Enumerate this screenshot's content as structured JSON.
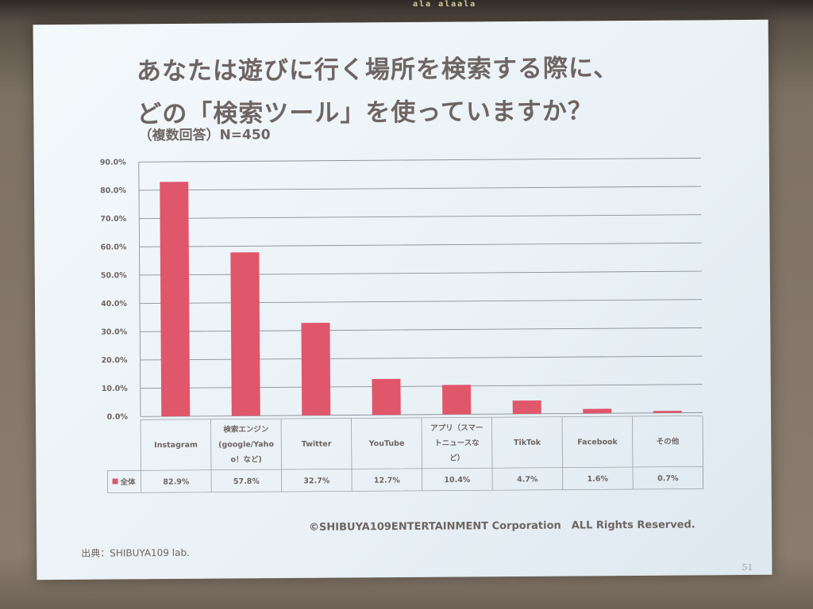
{
  "sign_text": "ala alaala",
  "slide": {
    "title_line1": "あなたは遊びに行く場所を検索する際に、",
    "title_line2": "どの「検索ツール」を使っていますか？",
    "subtitle": "（複数回答）N=450",
    "copyright": "©SHIBUYA109ENTERTAINMENT Corporation　ALL Rights Reserved.",
    "source": "出典：SHIBUYA109 lab.",
    "page_number": "51"
  },
  "chart_data": {
    "type": "bar",
    "categories": [
      "Instagram",
      "検索エンジン (google/Yahoo!など)",
      "Twitter",
      "YouTube",
      "アプリ（スマートニュースなど）",
      "TikTok",
      "Facebook",
      "その他"
    ],
    "category_lines": [
      [
        "Instagram"
      ],
      [
        "検索エンジン",
        "(google/Yaho",
        "o！など)"
      ],
      [
        "Twitter"
      ],
      [
        "YouTube"
      ],
      [
        "アプリ（スマー",
        "トニュースな",
        "ど）"
      ],
      [
        "TikTok"
      ],
      [
        "Facebook"
      ],
      [
        "その他"
      ]
    ],
    "series": [
      {
        "name": "全体",
        "values": [
          82.9,
          57.8,
          32.7,
          12.7,
          10.4,
          4.7,
          1.6,
          0.7
        ],
        "labels": [
          "82.9%",
          "57.8%",
          "32.7%",
          "12.7%",
          "10.4%",
          "4.7%",
          "1.6%",
          "0.7%"
        ],
        "color": "#e0566b"
      }
    ],
    "ylim": [
      0,
      90
    ],
    "y_ticks": [
      "0.0%",
      "10.0%",
      "20.0%",
      "30.0%",
      "40.0%",
      "50.0%",
      "60.0%",
      "70.0%",
      "80.0%",
      "90.0%"
    ],
    "grid": true,
    "legend": "data-table-left",
    "gridline_color": "#8a9099",
    "axis_text_color": "#6e6562"
  }
}
